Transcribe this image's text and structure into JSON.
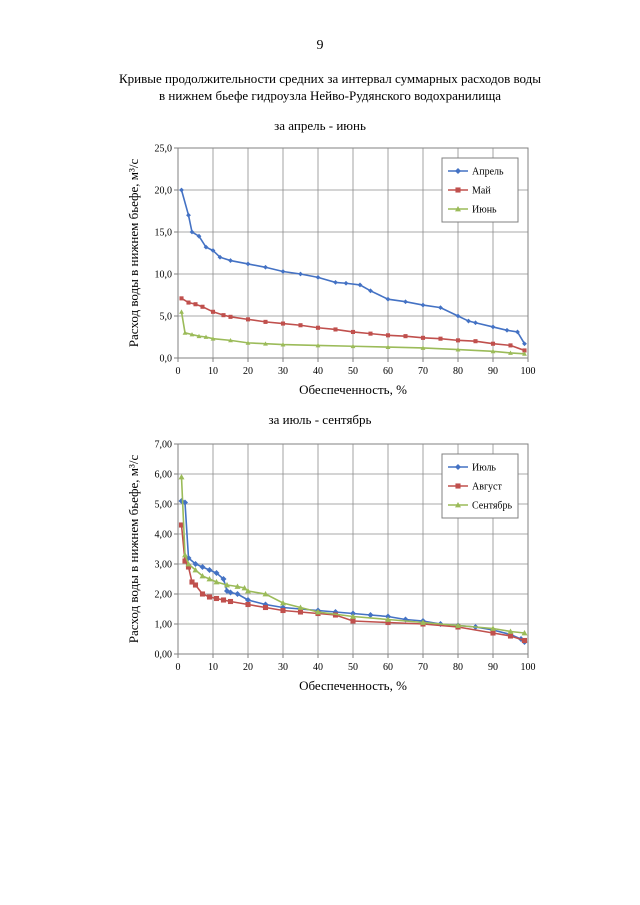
{
  "page_number": "9",
  "title_line1": "Кривые продолжительности средних за интервал суммарных расходов воды",
  "title_line2": "в нижнем бьефе гидроузла Нейво-Рудянского водохранилища",
  "colors": {
    "series1": "#4472C4",
    "series2": "#C0504D",
    "series3": "#9BBB59"
  },
  "chart_data": [
    {
      "type": "line",
      "title": "за апрель - июнь",
      "xlabel": "Обеспеченность, %",
      "ylabel": "Расход воды в нижнем бьефе, м³/с",
      "xlim": [
        0,
        100
      ],
      "ylim": [
        0,
        25
      ],
      "xticks": [
        "0",
        "10",
        "20",
        "30",
        "40",
        "50",
        "60",
        "70",
        "80",
        "90",
        "100"
      ],
      "yticks": [
        "0,0",
        "5,0",
        "10,0",
        "15,0",
        "20,0",
        "25,0"
      ],
      "grid": true,
      "legend_position": "top-right",
      "series": [
        {
          "name": "Апрель",
          "marker": "diamond",
          "x": [
            1,
            3,
            4,
            6,
            8,
            10,
            12,
            15,
            20,
            25,
            30,
            35,
            40,
            45,
            48,
            52,
            55,
            60,
            65,
            70,
            75,
            80,
            83,
            85,
            90,
            94,
            97,
            99
          ],
          "y": [
            20.0,
            17.0,
            15.0,
            14.5,
            13.2,
            12.8,
            12.0,
            11.6,
            11.2,
            10.8,
            10.3,
            10.0,
            9.6,
            9.0,
            8.9,
            8.7,
            8.0,
            7.0,
            6.7,
            6.3,
            6.0,
            5.0,
            4.4,
            4.2,
            3.7,
            3.3,
            3.1,
            1.7
          ]
        },
        {
          "name": "Май",
          "marker": "square",
          "x": [
            1,
            3,
            5,
            7,
            10,
            13,
            15,
            20,
            25,
            30,
            35,
            40,
            45,
            50,
            55,
            60,
            65,
            70,
            75,
            80,
            85,
            90,
            95,
            99
          ],
          "y": [
            7.1,
            6.6,
            6.4,
            6.1,
            5.5,
            5.1,
            4.9,
            4.6,
            4.3,
            4.1,
            3.9,
            3.6,
            3.4,
            3.1,
            2.9,
            2.7,
            2.6,
            2.4,
            2.3,
            2.1,
            2.0,
            1.7,
            1.5,
            0.9
          ]
        },
        {
          "name": "Июнь",
          "marker": "triangle",
          "x": [
            1,
            2,
            4,
            6,
            8,
            10,
            15,
            20,
            25,
            30,
            40,
            50,
            60,
            70,
            80,
            90,
            95,
            99
          ],
          "y": [
            5.5,
            3.0,
            2.8,
            2.6,
            2.5,
            2.3,
            2.1,
            1.8,
            1.7,
            1.6,
            1.5,
            1.4,
            1.3,
            1.2,
            1.0,
            0.8,
            0.6,
            0.5
          ]
        }
      ]
    },
    {
      "type": "line",
      "title": "за июль - сентябрь",
      "xlabel": "Обеспеченность, %",
      "ylabel": "Расход воды в нижнем бьефе, м³/с",
      "xlim": [
        0,
        100
      ],
      "ylim": [
        0,
        7
      ],
      "xticks": [
        "0",
        "10",
        "20",
        "30",
        "40",
        "50",
        "60",
        "70",
        "80",
        "90",
        "100"
      ],
      "yticks": [
        "0,00",
        "1,00",
        "2,00",
        "3,00",
        "4,00",
        "5,00",
        "6,00",
        "7,00"
      ],
      "grid": true,
      "legend_position": "top-right",
      "series": [
        {
          "name": "Июль",
          "marker": "diamond",
          "x": [
            1,
            2,
            3,
            5,
            7,
            9,
            11,
            13,
            14,
            15,
            17,
            20,
            25,
            30,
            35,
            40,
            45,
            50,
            55,
            60,
            65,
            70,
            75,
            80,
            85,
            90,
            95,
            98,
            99
          ],
          "y": [
            5.1,
            5.05,
            3.2,
            3.0,
            2.9,
            2.8,
            2.7,
            2.5,
            2.1,
            2.05,
            2.0,
            1.8,
            1.65,
            1.55,
            1.5,
            1.45,
            1.4,
            1.35,
            1.3,
            1.25,
            1.15,
            1.1,
            1.0,
            0.95,
            0.9,
            0.8,
            0.65,
            0.5,
            0.4
          ]
        },
        {
          "name": "Август",
          "marker": "square",
          "x": [
            1,
            2,
            3,
            4,
            5,
            7,
            9,
            11,
            13,
            15,
            20,
            25,
            30,
            35,
            40,
            45,
            50,
            60,
            70,
            80,
            90,
            95,
            99
          ],
          "y": [
            4.3,
            3.1,
            2.9,
            2.4,
            2.3,
            2.0,
            1.9,
            1.85,
            1.8,
            1.75,
            1.65,
            1.55,
            1.45,
            1.4,
            1.35,
            1.3,
            1.1,
            1.05,
            1.0,
            0.9,
            0.7,
            0.6,
            0.45
          ]
        },
        {
          "name": "Сентябрь",
          "marker": "triangle",
          "x": [
            1,
            2,
            3,
            5,
            7,
            9,
            11,
            14,
            17,
            19,
            20,
            25,
            30,
            35,
            40,
            50,
            60,
            70,
            80,
            90,
            95,
            99
          ],
          "y": [
            5.9,
            3.3,
            3.0,
            2.8,
            2.6,
            2.5,
            2.4,
            2.3,
            2.25,
            2.2,
            2.1,
            2.0,
            1.7,
            1.55,
            1.4,
            1.25,
            1.15,
            1.05,
            0.95,
            0.85,
            0.75,
            0.7
          ]
        }
      ]
    }
  ]
}
